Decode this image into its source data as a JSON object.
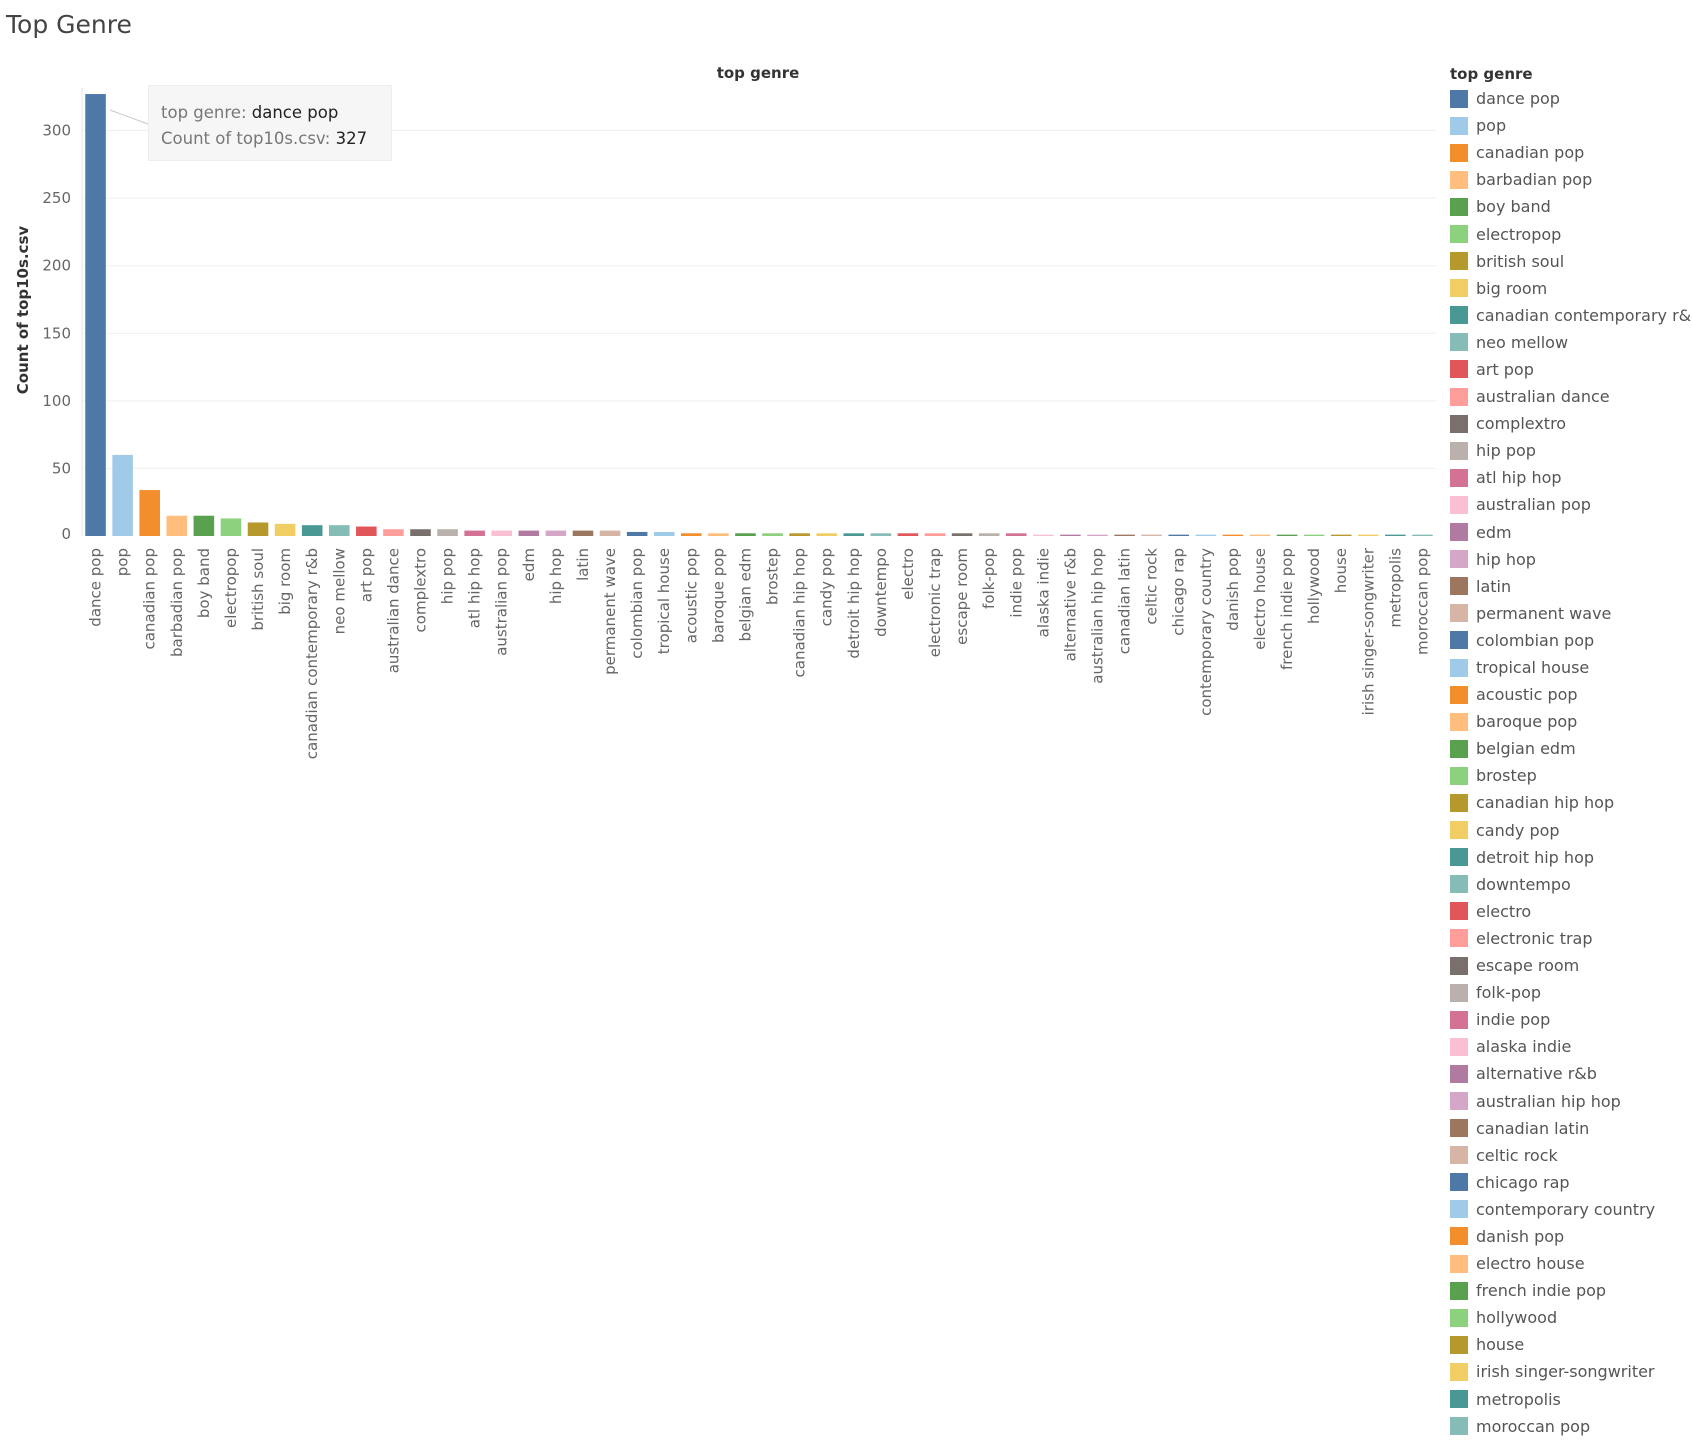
{
  "page": {
    "title": "Top Genre"
  },
  "tooltip": {
    "genre_label": "top genre:",
    "genre_value": "dance pop",
    "count_label": "Count of top10s.csv:",
    "count_value": "327"
  },
  "chart_data": {
    "type": "bar",
    "title": "top genre",
    "xlabel": "",
    "ylabel": "Count of top10s.csv",
    "ylim": [
      0,
      330
    ],
    "yticks": [
      0,
      50,
      100,
      150,
      200,
      250,
      300
    ],
    "grid": true,
    "legend": {
      "title": "top genre",
      "position": "right"
    },
    "categories": [
      "dance pop",
      "pop",
      "canadian pop",
      "barbadian pop",
      "boy band",
      "electropop",
      "british soul",
      "big room",
      "canadian contemporary r&b",
      "neo mellow",
      "art pop",
      "australian dance",
      "complextro",
      "hip pop",
      "atl hip hop",
      "australian pop",
      "edm",
      "hip hop",
      "latin",
      "permanent wave",
      "colombian pop",
      "tropical house",
      "acoustic pop",
      "baroque pop",
      "belgian edm",
      "brostep",
      "canadian hip hop",
      "candy pop",
      "detroit hip hop",
      "downtempo",
      "electro",
      "electronic trap",
      "escape room",
      "folk-pop",
      "indie pop",
      "alaska indie",
      "alternative r&b",
      "australian hip hop",
      "canadian latin",
      "celtic rock",
      "chicago rap",
      "contemporary country",
      "danish pop",
      "electro house",
      "french indie pop",
      "hollywood",
      "house",
      "irish singer-songwriter",
      "metropolis",
      "moroccan pop"
    ],
    "values": [
      327,
      60,
      34,
      15,
      15,
      13,
      10,
      9,
      8,
      8,
      7,
      5,
      5,
      5,
      4,
      4,
      4,
      4,
      4,
      4,
      3,
      3,
      2,
      2,
      2,
      2,
      2,
      2,
      2,
      2,
      2,
      2,
      2,
      2,
      2,
      1,
      1,
      1,
      1,
      1,
      1,
      1,
      1,
      1,
      1,
      1,
      1,
      1,
      1,
      1
    ],
    "colors": [
      "#4e79a7",
      "#a0cbe8",
      "#f28e2b",
      "#ffbe7d",
      "#59a14f",
      "#8cd17d",
      "#b6992d",
      "#f1ce63",
      "#499894",
      "#86bcb6",
      "#e15759",
      "#ff9d9a",
      "#79706e",
      "#bab0ac",
      "#d37295",
      "#fabfd2",
      "#b07aa1",
      "#d4a6c8",
      "#9d7660",
      "#d7b5a6"
    ],
    "legend_visible_count": 50
  }
}
